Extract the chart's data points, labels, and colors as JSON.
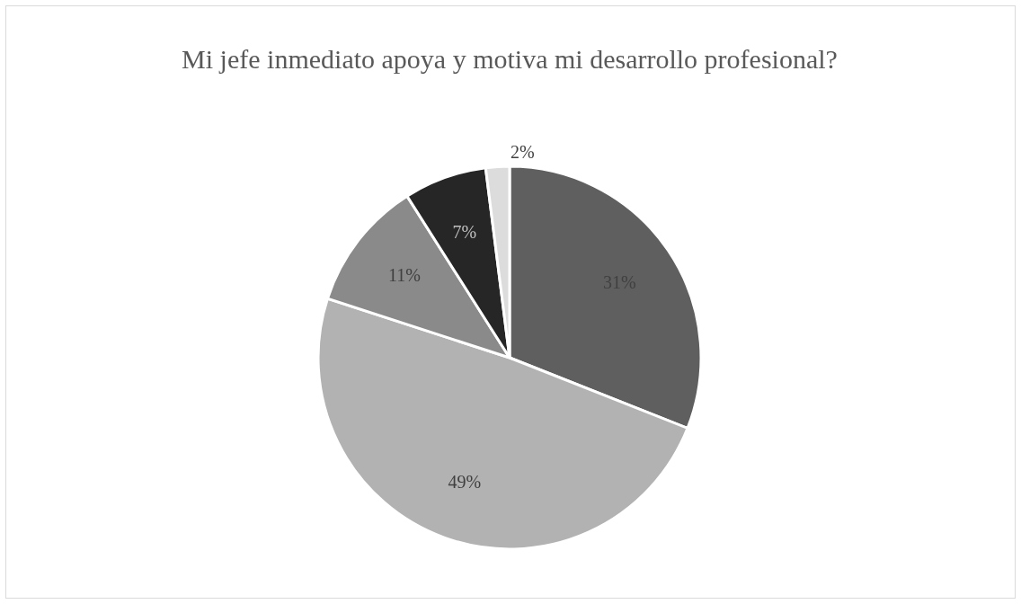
{
  "chart_data": {
    "type": "pie",
    "title": "Mi jefe inmediato apoya y motiva mi desarrollo profesional?",
    "categories": [
      null,
      null,
      null,
      null,
      null
    ],
    "values": [
      31,
      49,
      11,
      7,
      2
    ],
    "colors": [
      "#5f5f5f",
      "#b2b2b2",
      "#8a8a8a",
      "#262626",
      "#dcdcdc"
    ],
    "value_labels": [
      "31%",
      "49%",
      "11%",
      "7%",
      "2%"
    ],
    "legend": false
  }
}
